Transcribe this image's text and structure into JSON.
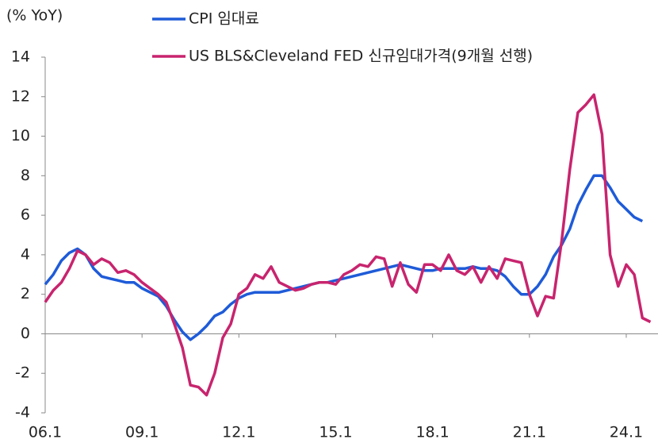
{
  "chart_data": {
    "type": "line",
    "y_label": "(% YoY)",
    "categories": [
      "06.1",
      null,
      null,
      null,
      null,
      null,
      null,
      null,
      null,
      null,
      null,
      null,
      "09.1",
      null,
      null,
      null,
      null,
      null,
      null,
      null,
      null,
      null,
      null,
      null,
      "12.1",
      null,
      null,
      null,
      null,
      null,
      null,
      null,
      null,
      null,
      null,
      null,
      "15.1",
      null,
      null,
      null,
      null,
      null,
      null,
      null,
      null,
      null,
      null,
      null,
      "18.1",
      null,
      null,
      null,
      null,
      null,
      null,
      null,
      null,
      null,
      null,
      null,
      "21.1",
      null,
      null,
      null,
      null,
      null,
      null,
      null,
      null,
      null,
      null,
      null,
      "24.1",
      null,
      null,
      null
    ],
    "series": [
      {
        "name": "CPI 임대료",
        "color": "#1e5bd8",
        "values": [
          2.5,
          3.0,
          3.7,
          4.1,
          4.3,
          4.0,
          3.3,
          2.9,
          2.8,
          2.7,
          2.6,
          2.6,
          2.3,
          2.1,
          1.9,
          1.4,
          0.7,
          0.1,
          -0.3,
          0.0,
          0.4,
          0.9,
          1.1,
          1.5,
          1.8,
          2.0,
          2.1,
          2.1,
          2.1,
          2.1,
          2.2,
          2.3,
          2.4,
          2.5,
          2.6,
          2.6,
          2.7,
          2.8,
          2.9,
          3.0,
          3.1,
          3.2,
          3.3,
          3.4,
          3.5,
          3.4,
          3.3,
          3.2,
          3.2,
          3.3,
          3.3,
          3.3,
          3.3,
          3.4,
          3.3,
          3.3,
          3.2,
          2.9,
          2.4,
          2.0,
          2.0,
          2.4,
          3.0,
          3.9,
          4.5,
          5.3,
          6.5,
          7.3,
          8.0,
          8.0,
          7.4,
          6.7,
          6.3,
          5.9,
          5.7,
          null
        ]
      },
      {
        "name": "US BLS&Cleveland FED 신규임대가격(9개월 선행)",
        "color": "#c8246e",
        "values": [
          1.6,
          2.2,
          2.6,
          3.3,
          4.2,
          4.0,
          3.5,
          3.8,
          3.6,
          3.1,
          3.2,
          3.0,
          2.6,
          2.3,
          2.0,
          1.6,
          0.5,
          -0.7,
          -2.6,
          -2.7,
          -3.1,
          -2.0,
          -0.2,
          0.5,
          2.0,
          2.3,
          3.0,
          2.8,
          3.4,
          2.6,
          2.4,
          2.2,
          2.3,
          2.5,
          2.6,
          2.6,
          2.5,
          3.0,
          3.2,
          3.5,
          3.4,
          3.9,
          3.8,
          2.4,
          3.6,
          2.5,
          2.1,
          3.5,
          3.5,
          3.2,
          4.0,
          3.2,
          3.0,
          3.4,
          2.6,
          3.4,
          2.8,
          3.8,
          3.7,
          3.6,
          2.0,
          0.9,
          1.9,
          1.8,
          4.7,
          8.3,
          11.2,
          11.6,
          12.1,
          10.1,
          4.0,
          2.4,
          3.5,
          3.0,
          0.8,
          0.6
        ]
      }
    ],
    "ylim": [
      -4,
      14
    ],
    "yticks": [
      -4,
      -2,
      0,
      2,
      4,
      6,
      8,
      10,
      12,
      14
    ]
  }
}
